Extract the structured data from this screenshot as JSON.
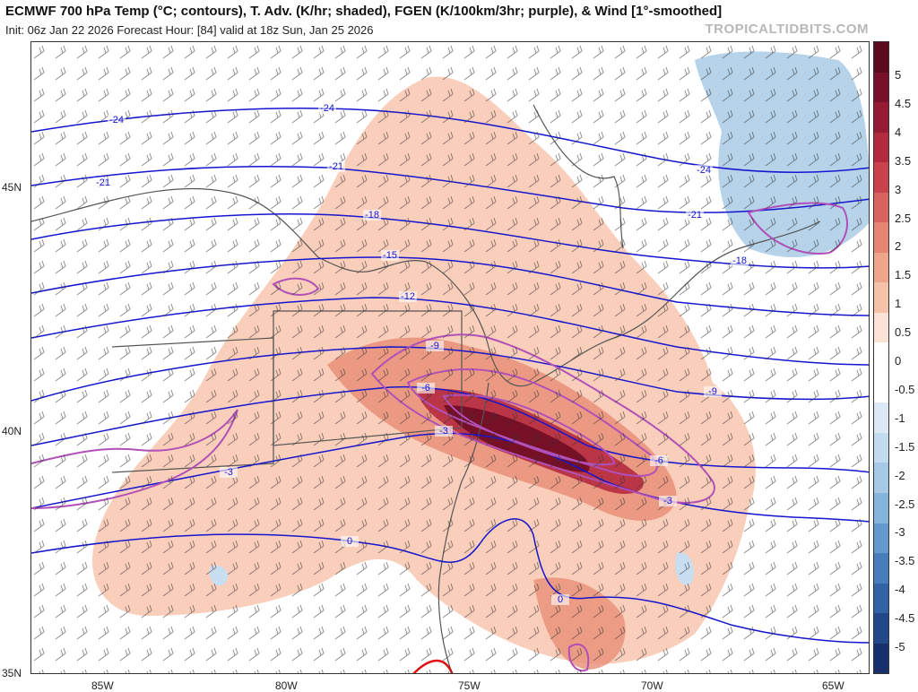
{
  "header": {
    "title": "ECMWF 700 hPa Temp (°C; contours), T. Adv. (K/hr; shaded), FGEN (K/100km/3hr; purple), & Wind [1°-smoothed]",
    "subtitle": "Init: 06z Jan 22 2026   Forecast Hour: [84]   valid at 18z Sun, Jan 25 2026",
    "watermark": "TROPICALTIDBITS.COM"
  },
  "map": {
    "lat_labels": [
      "45N",
      "40N",
      "35N"
    ],
    "lon_labels": [
      "85W",
      "80W",
      "75W",
      "70W",
      "65W"
    ],
    "temp_contour_labels": [
      "-24",
      "-24",
      "-24",
      "-21",
      "-21",
      "-21",
      "-18",
      "-18",
      "-15",
      "-12",
      "-9",
      "-9",
      "-6",
      "-6",
      "-3",
      "-3",
      "-3",
      "0",
      "0"
    ],
    "colors": {
      "temp_contour": "#1515d0",
      "fgen_contour": "#b050b8",
      "freezing_line": "#e01010",
      "warm_adv": "#8b0f2a",
      "cold_adv": "#2a64b0"
    }
  },
  "colorbar": {
    "labels": [
      "5",
      "4.5",
      "4",
      "3.5",
      "3",
      "2.5",
      "2",
      "1.5",
      "1",
      "0.5",
      "0",
      "-0.5",
      "-1",
      "-1.5",
      "-2",
      "-2.5",
      "-3",
      "-3.5",
      "-4",
      "-4.5",
      "-5"
    ],
    "colors": [
      "#5c0a1e",
      "#78102a",
      "#961a33",
      "#b32a3e",
      "#c9424c",
      "#d9645f",
      "#e68574",
      "#efa58c",
      "#f5c2a8",
      "#fbe2d4",
      "#ffffff",
      "#ffffff",
      "#dce9f5",
      "#c2dbee",
      "#a5c9e6",
      "#85b4dc",
      "#6399cc",
      "#467dba",
      "#3263a5",
      "#22488a",
      "#15306a"
    ]
  }
}
